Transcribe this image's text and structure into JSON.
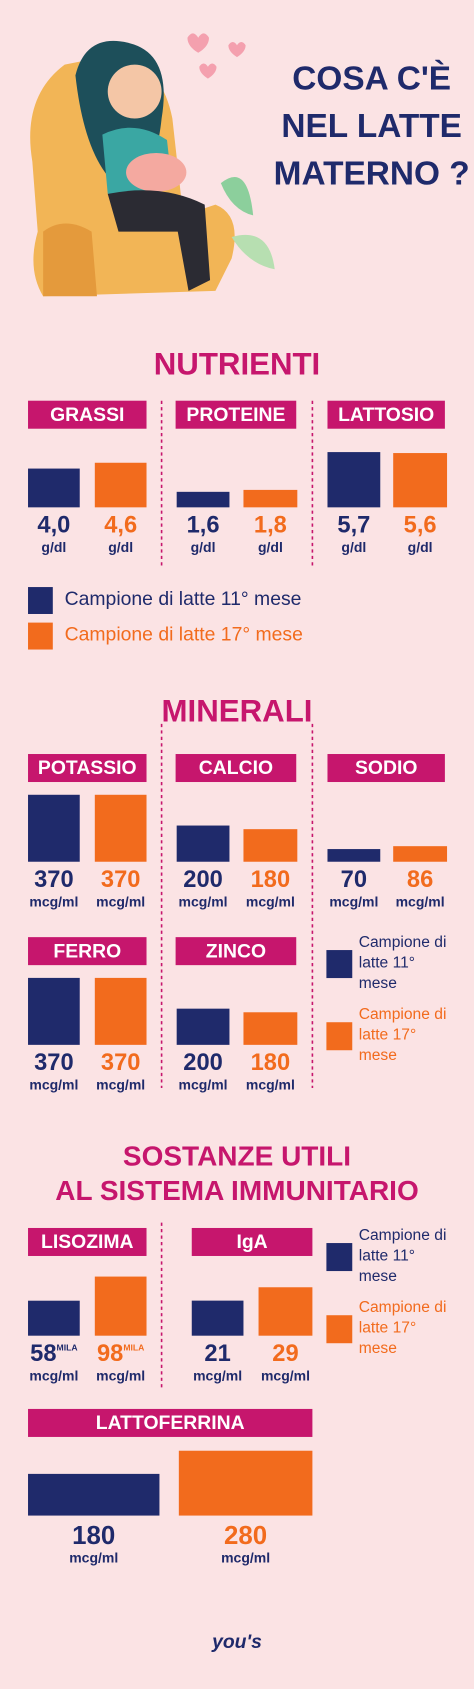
{
  "header": {
    "title_lines": [
      "COSA C'È",
      "NEL LATTE",
      "MATERNO ?"
    ]
  },
  "sections": [
    {
      "heading": [
        "NUTRIENTI"
      ],
      "legend": [
        {
          "name": "Campione di latte 11° mese",
          "color": "#1f2a6b"
        },
        {
          "name": "Campione di latte 17° mese",
          "color": "#f26b1d"
        }
      ],
      "charts": [
        {
          "type": "bar",
          "title": "GRASSI",
          "values": [
            4.0,
            4.6
          ],
          "value_labels": [
            "4,0",
            "4,6"
          ],
          "unit": "g/dl"
        },
        {
          "type": "bar",
          "title": "PROTEINE",
          "values": [
            1.6,
            1.8
          ],
          "value_labels": [
            "1,6",
            "1,8"
          ],
          "unit": "g/dl"
        },
        {
          "type": "bar",
          "title": "LATTOSIO",
          "values": [
            5.7,
            5.6
          ],
          "value_labels": [
            "5,7",
            "5,6"
          ],
          "unit": "g/dl"
        }
      ]
    },
    {
      "heading": [
        "MINERALI"
      ],
      "legend": [
        {
          "name": "Campione di latte 11° mese",
          "color": "#1f2a6b"
        },
        {
          "name": "Campione di latte 17° mese",
          "color": "#f26b1d"
        }
      ],
      "charts": [
        {
          "type": "bar",
          "title": "POTASSIO",
          "values": [
            370,
            370
          ],
          "unit": "mcg/ml"
        },
        {
          "type": "bar",
          "title": "CALCIO",
          "values": [
            200,
            180
          ],
          "unit": "mcg/ml"
        },
        {
          "type": "bar",
          "title": "SODIO",
          "values": [
            70,
            86
          ],
          "unit": "mcg/ml"
        },
        {
          "type": "bar",
          "title": "FERRO",
          "values": [
            370,
            370
          ],
          "unit": "mcg/ml"
        },
        {
          "type": "bar",
          "title": "ZINCO",
          "values": [
            200,
            180
          ],
          "unit": "mcg/ml"
        }
      ]
    },
    {
      "heading": [
        "SOSTANZE UTILI",
        "AL SISTEMA IMMUNITARIO"
      ],
      "legend": [
        {
          "name": "Campione di latte 11° mese",
          "color": "#1f2a6b"
        },
        {
          "name": "Campione di latte 17° mese",
          "color": "#f26b1d"
        }
      ],
      "charts": [
        {
          "type": "bar",
          "title": "LISOZIMA",
          "values": [
            58,
            98
          ],
          "unit_suffix": "MILA",
          "unit": "mcg/ml"
        },
        {
          "type": "bar",
          "title": "IgA",
          "values": [
            21,
            29
          ],
          "unit": "mcg/ml"
        },
        {
          "type": "bar",
          "title": "LATTOFERRINA",
          "values": [
            180,
            280
          ],
          "unit": "mcg/ml"
        }
      ]
    }
  ],
  "footer": "you's"
}
